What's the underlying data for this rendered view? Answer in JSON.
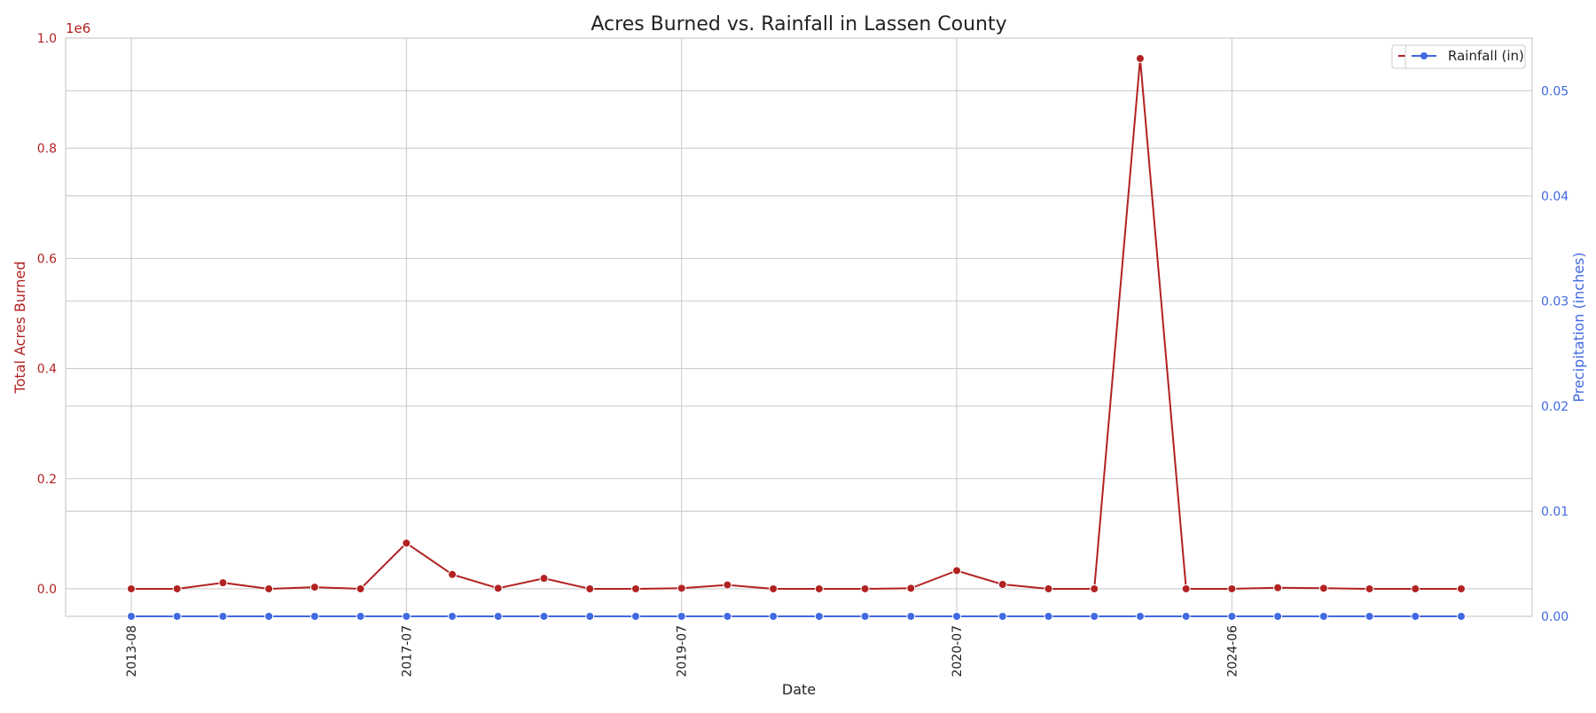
{
  "chart_data": {
    "type": "line",
    "title": "Acres Burned vs. Rainfall in Lassen County",
    "xlabel": "Date",
    "y_left_label": "Total Acres Burned",
    "y_left_offset_text": "1e6",
    "y_right_label": "Precipitation (inches)",
    "left_color": "#b22222",
    "right_color": "#4169e1",
    "grid": true,
    "legend_position": "top-right",
    "x_tick_labels": [
      "2013-08",
      "2017-07",
      "2019-07",
      "2020-07",
      "2024-06"
    ],
    "x_tick_positions": [
      0,
      6,
      12,
      18,
      24
    ],
    "y_left_ticks": [
      "0.0",
      "0.2",
      "0.4",
      "0.6",
      "0.8",
      "1.0"
    ],
    "y_left_range": [
      -0.05,
      1.0
    ],
    "y_right_ticks": [
      "0.00",
      "0.01",
      "0.02",
      "0.03",
      "0.04",
      "0.05"
    ],
    "y_right_range": [
      0.0,
      0.055
    ],
    "series": [
      {
        "name": "Acres Burned",
        "axis": "left",
        "values": [
          0.0,
          0.0,
          0.011,
          0.0,
          0.003,
          0.0,
          0.083,
          0.026,
          0.001,
          0.019,
          0.0,
          0.0,
          0.001,
          0.007,
          0.0,
          0.0,
          0.0,
          0.001,
          0.033,
          0.008,
          0.0,
          0.0,
          0.963,
          0.0,
          0.0,
          0.002,
          0.001,
          0.0,
          0.0,
          0.0
        ]
      },
      {
        "name": "Rainfall (in)",
        "axis": "right",
        "values": [
          0,
          0,
          0,
          0,
          0,
          0,
          0,
          0,
          0,
          0,
          0,
          0,
          0,
          0,
          0,
          0,
          0,
          0,
          0,
          0,
          0,
          0,
          0,
          0,
          0,
          0,
          0,
          0,
          0,
          0
        ]
      }
    ]
  }
}
